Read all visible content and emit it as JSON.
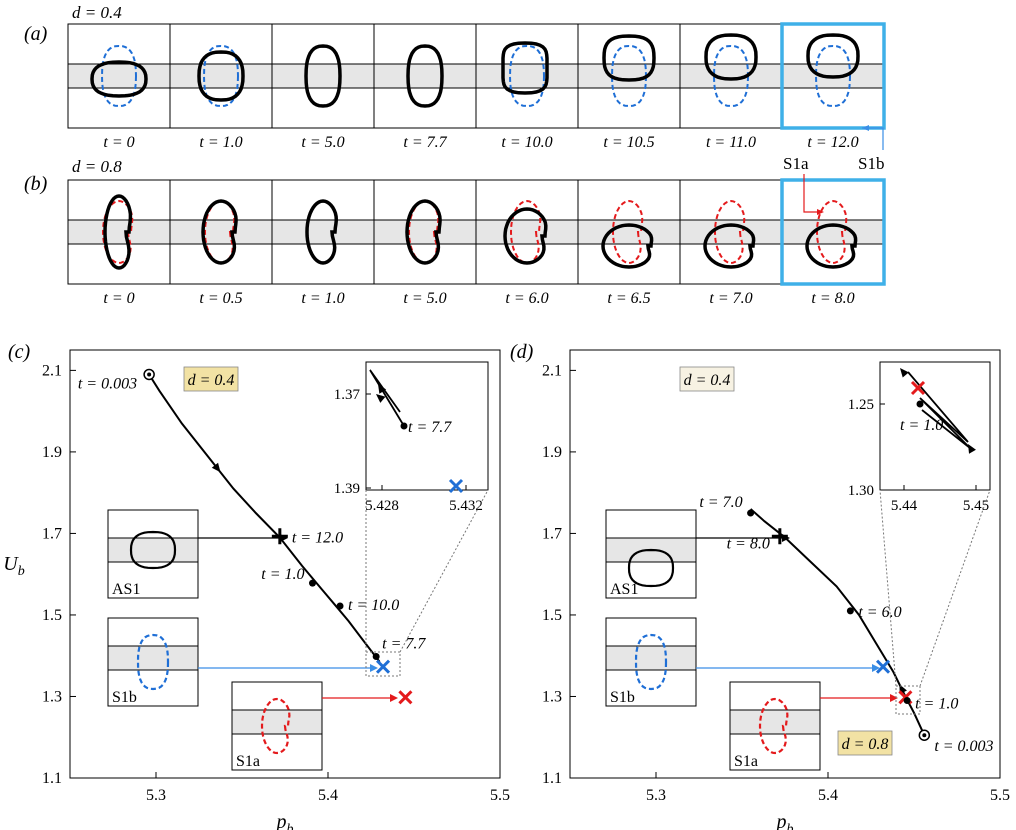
{
  "panel_a": {
    "label": "(a)",
    "d_label": "d = 0.4",
    "times": [
      "t = 0",
      "t = 1.0",
      "t = 5.0",
      "t = 7.7",
      "t = 10.0",
      "t = 10.5",
      "t = 11.0",
      "t = 12.0"
    ],
    "shape_color": "#000000",
    "ref_color": "#1f6fd6"
  },
  "panel_b": {
    "label": "(b)",
    "d_label": "d = 0.8",
    "times": [
      "t = 0",
      "t = 0.5",
      "t = 1.0",
      "t = 5.0",
      "t = 6.0",
      "t = 6.5",
      "t = 7.0",
      "t = 8.0"
    ],
    "shape_color": "#000000",
    "ref_color": "#e41a1c"
  },
  "annotations": {
    "s1a": "S1a",
    "s1b": "S1b",
    "highlight_color": "#3fb0e8"
  },
  "chart_data": [
    {
      "panel": "(c)",
      "type": "line",
      "xlabel": "p_b",
      "ylabel": "U_b",
      "xlim": [
        5.25,
        5.5
      ],
      "ylim": [
        1.1,
        2.15
      ],
      "xticks": [
        "5.3",
        "5.4",
        "5.5"
      ],
      "yticks": [
        "1.1",
        "1.3",
        "1.5",
        "1.7",
        "1.9",
        "2.1"
      ],
      "badge": "d = 0.4",
      "series": [
        {
          "x": [
            5.296,
            5.302,
            5.315,
            5.33,
            5.345,
            5.358,
            5.372,
            5.385,
            5.397,
            5.405,
            5.412,
            5.42,
            5.43
          ],
          "y": [
            2.09,
            2.05,
            1.97,
            1.89,
            1.81,
            1.75,
            1.69,
            1.62,
            1.56,
            1.52,
            1.485,
            1.44,
            1.385
          ]
        }
      ],
      "points": [
        {
          "label": "t = 0.003",
          "x": 5.296,
          "y": 2.09,
          "marker": "open"
        },
        {
          "label": "t = 12.0",
          "x": 5.372,
          "y": 1.693,
          "marker": "plus"
        },
        {
          "label": "t = 1.0",
          "x": 5.391,
          "y": 1.578,
          "marker": "dot"
        },
        {
          "label": "t = 10.0",
          "x": 5.407,
          "y": 1.522,
          "marker": "dot"
        },
        {
          "label": "t = 7.7",
          "x": 5.428,
          "y": 1.398,
          "marker": "dot"
        }
      ],
      "markers": [
        {
          "name": "S1b",
          "x": 5.432,
          "y": 1.373,
          "color": "#1f6fd6"
        },
        {
          "name": "S1a",
          "x": 5.445,
          "y": 1.298,
          "color": "#e41a1c"
        }
      ],
      "insets_labels": [
        "AS1",
        "S1b",
        "S1a"
      ],
      "zoom": {
        "xticks": [
          "5.428",
          "5.432"
        ],
        "yticks": [
          "1.37",
          "1.39"
        ],
        "label": "t = 7.7"
      }
    },
    {
      "panel": "(d)",
      "type": "line",
      "xlabel": "p_b",
      "ylabel": "",
      "xlim": [
        5.25,
        5.5
      ],
      "ylim": [
        1.1,
        2.15
      ],
      "xticks": [
        "5.3",
        "5.4",
        "5.5"
      ],
      "yticks": [
        "1.1",
        "1.3",
        "1.5",
        "1.7",
        "1.9",
        "2.1"
      ],
      "badge_ref": "d = 0.4",
      "badge": "d = 0.8",
      "series": [
        {
          "x": [
            5.456,
            5.45,
            5.445,
            5.438,
            5.428,
            5.418,
            5.405,
            5.39,
            5.375,
            5.363,
            5.355
          ],
          "y": [
            1.205,
            1.26,
            1.3,
            1.36,
            1.43,
            1.5,
            1.57,
            1.63,
            1.69,
            1.73,
            1.76
          ]
        }
      ],
      "points": [
        {
          "label": "t = 0.003",
          "x": 5.456,
          "y": 1.205,
          "marker": "open"
        },
        {
          "label": "t = 1.0",
          "x": 5.446,
          "y": 1.29,
          "marker": "dot"
        },
        {
          "label": "t = 6.0",
          "x": 5.413,
          "y": 1.51,
          "marker": "dot"
        },
        {
          "label": "t = 7.0",
          "x": 5.355,
          "y": 1.75,
          "marker": "dot"
        },
        {
          "label": "t = 8.0",
          "x": 5.372,
          "y": 1.693,
          "marker": "plus"
        }
      ],
      "markers": [
        {
          "name": "S1b",
          "x": 5.432,
          "y": 1.373,
          "color": "#1f6fd6"
        },
        {
          "name": "S1a",
          "x": 5.445,
          "y": 1.298,
          "color": "#e41a1c"
        }
      ],
      "insets_labels": [
        "AS1",
        "S1b",
        "S1a"
      ],
      "zoom": {
        "xticks": [
          "5.44",
          "5.45"
        ],
        "yticks": [
          "1.25",
          "1.30"
        ],
        "label": "t = 1.0"
      }
    }
  ]
}
